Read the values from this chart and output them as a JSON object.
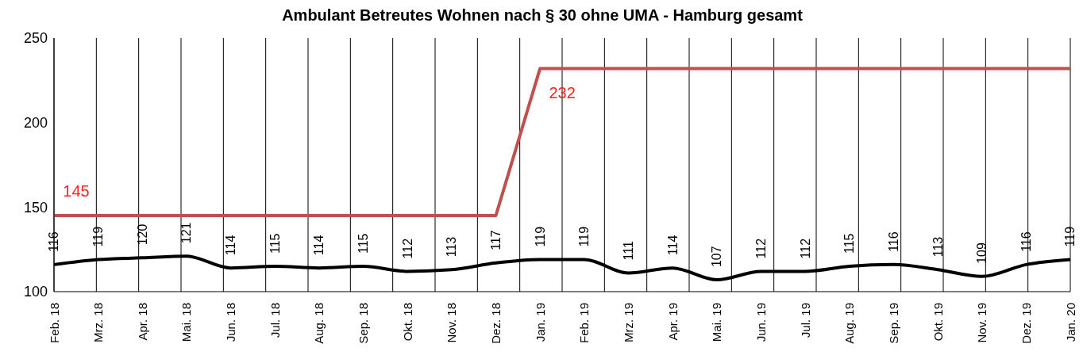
{
  "chart_data": {
    "type": "line",
    "title": "Ambulant Betreutes Wohnen nach § 30 ohne UMA - Hamburg gesamt",
    "categories": [
      "Feb. 18",
      "Mrz. 18",
      "Apr. 18",
      "Mai. 18",
      "Jun. 18",
      "Jul. 18",
      "Aug. 18",
      "Sep. 18",
      "Okt. 18",
      "Nov. 18",
      "Dez. 18",
      "Jan. 19",
      "Feb. 19",
      "Mrz. 19",
      "Apr. 19",
      "Mai. 19",
      "Jun. 19",
      "Jul. 19",
      "Aug. 19",
      "Sep. 19",
      "Okt. 19",
      "Nov. 19",
      "Dez. 19",
      "Jan. 20"
    ],
    "series": [
      {
        "color": "#c0504d",
        "values": [
          145,
          145,
          145,
          145,
          145,
          145,
          145,
          145,
          145,
          145,
          145,
          232,
          232,
          232,
          232,
          232,
          232,
          232,
          232,
          232,
          232,
          232,
          232,
          232
        ],
        "value_labels": [
          "145",
          null,
          null,
          null,
          null,
          null,
          null,
          null,
          null,
          null,
          null,
          "232",
          null,
          null,
          null,
          null,
          null,
          null,
          null,
          null,
          null,
          null,
          null,
          null
        ]
      },
      {
        "color": "#000000",
        "values": [
          116,
          119,
          120,
          121,
          114,
          115,
          114,
          115,
          112,
          113,
          117,
          119,
          119,
          111,
          114,
          107,
          112,
          112,
          115,
          116,
          113,
          109,
          116,
          119
        ],
        "value_labels": [
          "116",
          "119",
          "120",
          "121",
          "114",
          "115",
          "114",
          "115",
          "112",
          "113",
          "117",
          "119",
          "119",
          "111",
          "114",
          "107",
          "112",
          "112",
          "115",
          "116",
          "113",
          "109",
          "116",
          "119"
        ]
      }
    ],
    "ylim": [
      100,
      250
    ],
    "yticks": [
      100,
      150,
      200,
      250
    ],
    "grid": "x",
    "marker": "none",
    "line_style": "solid"
  }
}
